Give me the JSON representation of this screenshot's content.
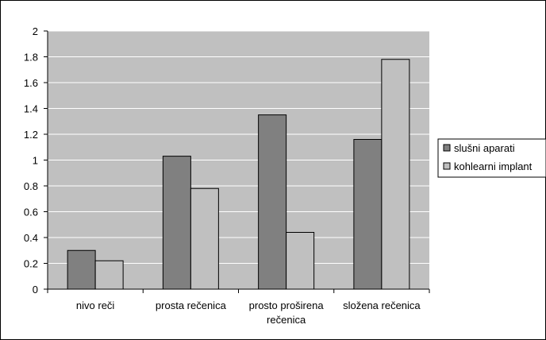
{
  "chart_data": {
    "type": "bar",
    "title": "",
    "xlabel": "",
    "ylabel": "",
    "ylim": [
      0,
      2
    ],
    "yticks": [
      "0",
      "0.2",
      "0.4",
      "0.6",
      "0.8",
      "1",
      "1.2",
      "1.4",
      "1.6",
      "1.8",
      "2"
    ],
    "categories": [
      [
        "nivo reči"
      ],
      [
        "prosta rečenica"
      ],
      [
        "prosto proširena",
        "rečenica"
      ],
      [
        "složena rečenica"
      ]
    ],
    "series": [
      {
        "name": "slušni aparati",
        "values": [
          0.3,
          1.03,
          1.35,
          1.16
        ],
        "color": "#808080"
      },
      {
        "name": "kohlearni implant",
        "values": [
          0.22,
          0.78,
          0.44,
          1.78
        ],
        "color": "#c0c0c0"
      }
    ],
    "plot_background": "#c0c0c0",
    "grid": true,
    "legend_position": "right"
  }
}
